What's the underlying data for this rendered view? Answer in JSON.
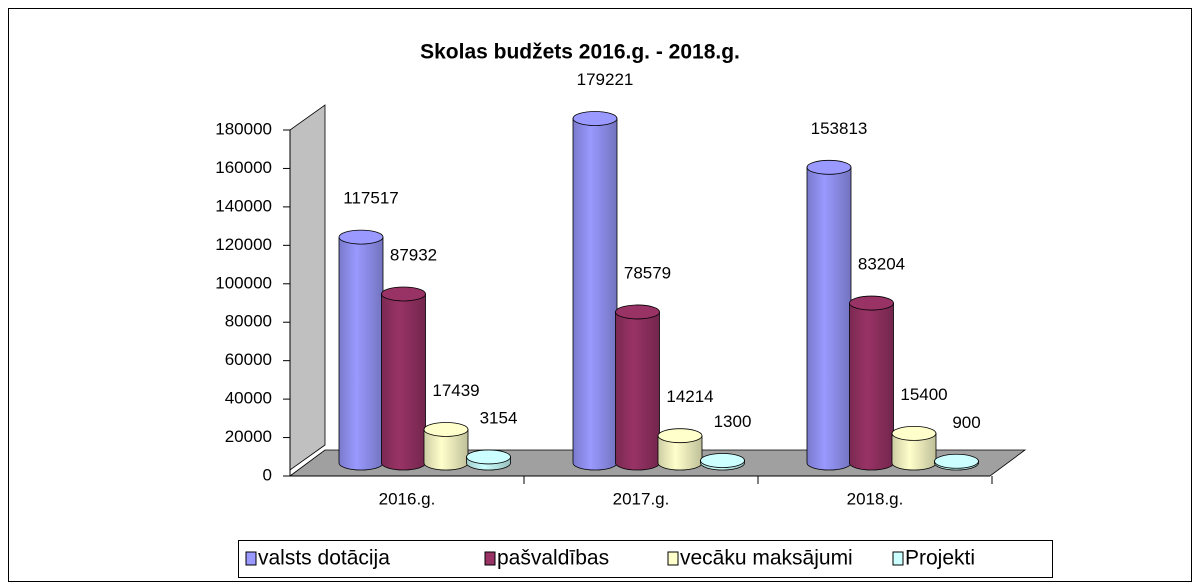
{
  "chart_data": {
    "type": "bar3d",
    "title": "Skolas budžets 2016.g. -  2018.g.",
    "categories": [
      "2016.g.",
      "2017.g.",
      "2018.g."
    ],
    "series": [
      {
        "name": "valsts dotācija",
        "color": "#9999ff",
        "values": [
          117517,
          179221,
          153813
        ]
      },
      {
        "name": "pašvaldības",
        "color": "#993366",
        "values": [
          87932,
          78579,
          83204
        ]
      },
      {
        "name": "vecāku maksājumi",
        "color": "#ffffcc",
        "values": [
          17439,
          14214,
          15400
        ]
      },
      {
        "name": "Projekti",
        "color": "#ccffff",
        "values": [
          3154,
          1300,
          900
        ]
      }
    ],
    "ylim": [
      0,
      180000
    ],
    "yticks": [
      0,
      20000,
      40000,
      60000,
      80000,
      100000,
      120000,
      140000,
      160000,
      180000
    ],
    "legend": "bottom",
    "grid": false
  }
}
